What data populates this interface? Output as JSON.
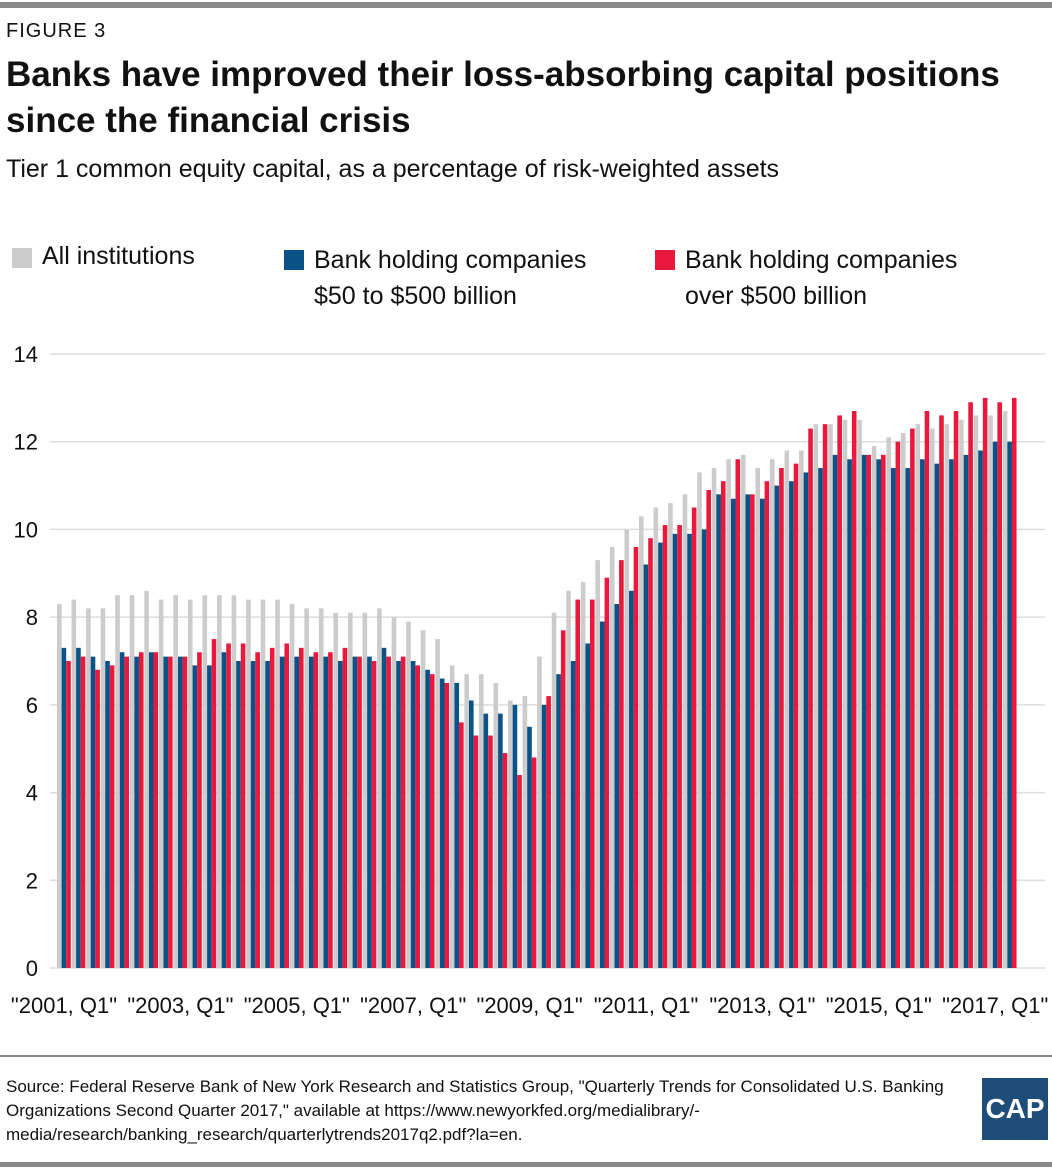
{
  "figure_label": "FIGURE 3",
  "logo_text": "CAP",
  "source": "Source: Federal Reserve Bank of New York Research and Statistics Group, \"Quarterly Trends for Consolidated U.S. Banking Organizations Second Quarter 2017,\" available at https://www.newyorkfed.org/medialibrary/-media/research/banking_research/quarterlytrends2017q2.pdf?la=en.",
  "chart_data": {
    "type": "bar",
    "title": "Banks have improved their loss-absorbing capital positions since the financial crisis",
    "subtitle": "Tier 1 common equity capital, as a percentage of risk-weighted assets",
    "xlabel": "",
    "ylabel": "",
    "ylim": [
      0,
      14
    ],
    "yticks": [
      "0",
      "2",
      "4",
      "6",
      "8",
      "10",
      "12",
      "14"
    ],
    "xtick_labels": [
      "\"2001, Q1\"",
      "\"2003, Q1\"",
      "\"2005, Q1\"",
      "\"2007, Q1\"",
      "\"2009, Q1\"",
      "\"2011, Q1\"",
      "\"2013, Q1\"",
      "\"2015, Q1\"",
      "\"2017, Q1\""
    ],
    "x_range": "2001 Q1 to 2017 Q2 (quarterly)",
    "grid": true,
    "legend_placement": "top",
    "series": [
      {
        "name": "All institutions",
        "color": "#cccccc",
        "values": [
          8.3,
          8.4,
          8.2,
          8.2,
          8.5,
          8.5,
          8.6,
          8.4,
          8.5,
          8.4,
          8.5,
          8.5,
          8.5,
          8.4,
          8.4,
          8.4,
          8.3,
          8.2,
          8.2,
          8.1,
          8.1,
          8.1,
          8.2,
          8.0,
          7.9,
          7.7,
          7.5,
          6.9,
          6.7,
          6.7,
          6.5,
          6.1,
          6.2,
          7.1,
          8.1,
          8.6,
          8.8,
          9.3,
          9.6,
          10.0,
          10.3,
          10.5,
          10.6,
          10.8,
          11.3,
          11.4,
          11.6,
          11.7,
          11.4,
          11.6,
          11.8,
          11.8,
          12.4,
          12.4,
          12.5,
          12.5,
          11.9,
          12.1,
          12.2,
          12.4,
          12.3,
          12.4,
          12.5,
          12.6,
          12.6,
          12.7
        ]
      },
      {
        "name": "Bank holding companies $50 to $500 billion",
        "legend_lines": [
          "Bank holding companies",
          "$50 to $500 billion"
        ],
        "color": "#0b5387",
        "values": [
          7.3,
          7.3,
          7.1,
          7.0,
          7.2,
          7.1,
          7.2,
          7.1,
          7.1,
          6.9,
          6.9,
          7.2,
          7.0,
          7.0,
          7.0,
          7.1,
          7.1,
          7.1,
          7.1,
          7.0,
          7.1,
          7.1,
          7.3,
          7.0,
          7.0,
          6.8,
          6.6,
          6.5,
          6.1,
          5.8,
          5.8,
          6.0,
          5.5,
          6.0,
          6.7,
          7.0,
          7.4,
          7.9,
          8.3,
          8.6,
          9.2,
          9.7,
          9.9,
          9.9,
          10.0,
          10.8,
          10.7,
          10.8,
          10.7,
          11.0,
          11.1,
          11.3,
          11.4,
          11.7,
          11.6,
          11.7,
          11.6,
          11.4,
          11.4,
          11.6,
          11.5,
          11.6,
          11.7,
          11.8,
          12.0,
          12.0
        ]
      },
      {
        "name": "Bank holding companies over $500 billion",
        "legend_lines": [
          "Bank holding companies",
          "over $500 billion"
        ],
        "color": "#e8193c",
        "values": [
          7.0,
          7.1,
          6.8,
          6.9,
          7.1,
          7.2,
          7.2,
          7.1,
          7.1,
          7.2,
          7.5,
          7.4,
          7.4,
          7.2,
          7.3,
          7.4,
          7.3,
          7.2,
          7.2,
          7.3,
          7.1,
          7.0,
          7.1,
          7.1,
          6.9,
          6.7,
          6.5,
          5.6,
          5.3,
          5.3,
          4.9,
          4.4,
          4.8,
          6.2,
          7.7,
          8.4,
          8.4,
          8.9,
          9.3,
          9.6,
          9.8,
          10.1,
          10.1,
          10.5,
          10.9,
          11.1,
          11.6,
          10.8,
          11.1,
          11.4,
          11.5,
          12.3,
          12.4,
          12.6,
          12.7,
          11.7,
          11.7,
          12.0,
          12.3,
          12.7,
          12.6,
          12.7,
          12.9,
          13.0,
          12.9,
          13.0
        ]
      }
    ]
  }
}
